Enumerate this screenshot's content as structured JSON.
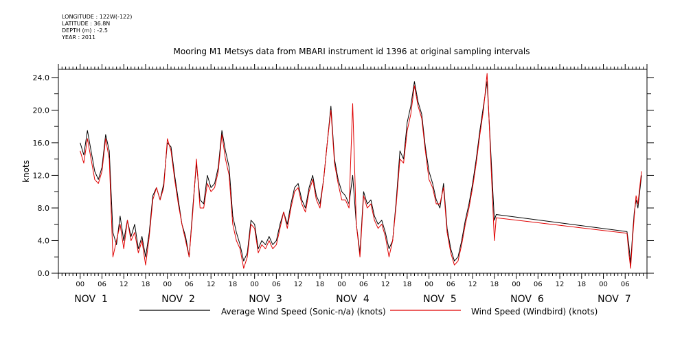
{
  "meta": {
    "longitude": "LONGITUDE : 122W(-122)",
    "latitude": "LATITUDE : 36.8N",
    "depth": "DEPTH (m) : -2.5",
    "year": "YEAR : 2011"
  },
  "chart_data": {
    "type": "line",
    "title": "Mooring M1 Metsys data from MBARI instrument id 1396 at original sampling intervals",
    "ylabel": "knots",
    "xlabel": "",
    "ylim": [
      0,
      25
    ],
    "xlim_hours": [
      -6,
      156
    ],
    "yticks": [
      "0.0",
      "4.0",
      "8.0",
      "12.0",
      "16.0",
      "20.0",
      "24.0"
    ],
    "hour_tick_labels": [
      "00",
      "06",
      "12",
      "18"
    ],
    "day_labels": [
      "NOV  1",
      "NOV  2",
      "NOV  3",
      "NOV  4",
      "NOV  5",
      "NOV  6",
      "NOV  7"
    ],
    "grid": false,
    "legend_position": "bottom",
    "colors": {
      "series1": "#000000",
      "series2": "#e00000"
    },
    "series": [
      {
        "name": "Average Wind Speed (Sonic-n/a) (knots)",
        "color": "#000000",
        "points": [
          [
            0,
            16.0
          ],
          [
            1,
            14.5
          ],
          [
            2,
            17.5
          ],
          [
            3,
            15.0
          ],
          [
            4,
            12.5
          ],
          [
            5,
            11.5
          ],
          [
            6,
            13.0
          ],
          [
            7,
            17.0
          ],
          [
            8,
            15.0
          ],
          [
            9,
            5.0
          ],
          [
            10,
            3.5
          ],
          [
            11,
            7.0
          ],
          [
            12,
            4.0
          ],
          [
            13,
            6.5
          ],
          [
            14,
            4.5
          ],
          [
            15,
            6.0
          ],
          [
            16,
            3.0
          ],
          [
            17,
            4.5
          ],
          [
            18,
            2.0
          ],
          [
            19,
            5.0
          ],
          [
            20,
            9.5
          ],
          [
            21,
            10.5
          ],
          [
            22,
            9.0
          ],
          [
            23,
            11.0
          ],
          [
            24,
            16.0
          ],
          [
            25,
            15.5
          ],
          [
            26,
            12.0
          ],
          [
            27,
            9.0
          ],
          [
            28,
            6.0
          ],
          [
            29,
            4.5
          ],
          [
            30,
            2.0
          ],
          [
            31,
            8.0
          ],
          [
            32,
            13.5
          ],
          [
            33,
            9.0
          ],
          [
            34,
            8.5
          ],
          [
            35,
            12.0
          ],
          [
            36,
            10.5
          ],
          [
            37,
            11.0
          ],
          [
            38,
            13.0
          ],
          [
            39,
            17.5
          ],
          [
            40,
            15.0
          ],
          [
            41,
            13.0
          ],
          [
            42,
            7.0
          ],
          [
            43,
            5.0
          ],
          [
            44,
            3.5
          ],
          [
            45,
            1.5
          ],
          [
            46,
            2.5
          ],
          [
            47,
            6.5
          ],
          [
            48,
            6.0
          ],
          [
            49,
            3.0
          ],
          [
            50,
            4.0
          ],
          [
            51,
            3.5
          ],
          [
            52,
            4.5
          ],
          [
            53,
            3.5
          ],
          [
            54,
            4.0
          ],
          [
            55,
            6.0
          ],
          [
            56,
            7.5
          ],
          [
            57,
            6.0
          ],
          [
            58,
            8.5
          ],
          [
            59,
            10.5
          ],
          [
            60,
            11.0
          ],
          [
            61,
            9.0
          ],
          [
            62,
            8.0
          ],
          [
            63,
            10.5
          ],
          [
            64,
            12.0
          ],
          [
            65,
            9.5
          ],
          [
            66,
            8.5
          ],
          [
            67,
            11.5
          ],
          [
            68,
            16.0
          ],
          [
            69,
            20.5
          ],
          [
            70,
            14.0
          ],
          [
            71,
            11.5
          ],
          [
            72,
            10.0
          ],
          [
            73,
            9.5
          ],
          [
            74,
            8.5
          ],
          [
            75,
            12.0
          ],
          [
            76,
            6.0
          ],
          [
            77,
            2.5
          ],
          [
            78,
            10.0
          ],
          [
            79,
            8.5
          ],
          [
            80,
            9.0
          ],
          [
            81,
            7.0
          ],
          [
            82,
            6.0
          ],
          [
            83,
            6.5
          ],
          [
            84,
            5.0
          ],
          [
            85,
            3.0
          ],
          [
            86,
            4.0
          ],
          [
            87,
            9.0
          ],
          [
            88,
            15.0
          ],
          [
            89,
            14.0
          ],
          [
            90,
            18.5
          ],
          [
            91,
            20.5
          ],
          [
            92,
            23.5
          ],
          [
            93,
            21.0
          ],
          [
            94,
            19.5
          ],
          [
            95,
            15.5
          ],
          [
            96,
            12.5
          ],
          [
            97,
            11.0
          ],
          [
            98,
            9.0
          ],
          [
            99,
            8.0
          ],
          [
            100,
            11.0
          ],
          [
            101,
            5.5
          ],
          [
            102,
            3.0
          ],
          [
            103,
            1.5
          ],
          [
            104,
            2.0
          ],
          [
            105,
            4.0
          ],
          [
            106,
            6.5
          ],
          [
            107,
            8.5
          ],
          [
            108,
            11.0
          ],
          [
            109,
            14.0
          ],
          [
            110,
            17.5
          ],
          [
            111,
            20.5
          ],
          [
            112,
            23.5
          ],
          [
            113,
            15.0
          ],
          [
            114,
            6.5
          ],
          [
            114.5,
            7.2
          ],
          [
            150.5,
            5.1
          ],
          [
            151,
            3.5
          ],
          [
            151.5,
            1.2
          ],
          [
            152,
            4.5
          ],
          [
            152.5,
            7.5
          ],
          [
            153,
            9.0
          ],
          [
            153.5,
            8.0
          ],
          [
            154,
            10.0
          ],
          [
            154.5,
            12.0
          ]
        ]
      },
      {
        "name": "Wind Speed (Windbird) (knots)",
        "color": "#e00000",
        "points": [
          [
            0,
            15.0
          ],
          [
            1,
            13.5
          ],
          [
            2,
            16.5
          ],
          [
            3,
            14.0
          ],
          [
            4,
            11.5
          ],
          [
            5,
            11.0
          ],
          [
            6,
            12.5
          ],
          [
            7,
            16.5
          ],
          [
            8,
            14.0
          ],
          [
            9,
            2.0
          ],
          [
            10,
            4.0
          ],
          [
            11,
            6.0
          ],
          [
            12,
            3.0
          ],
          [
            13,
            6.5
          ],
          [
            14,
            4.0
          ],
          [
            15,
            5.0
          ],
          [
            16,
            2.5
          ],
          [
            17,
            4.0
          ],
          [
            18,
            1.0
          ],
          [
            19,
            4.5
          ],
          [
            20,
            9.0
          ],
          [
            21,
            10.5
          ],
          [
            22,
            9.0
          ],
          [
            23,
            10.5
          ],
          [
            24,
            16.5
          ],
          [
            25,
            15.0
          ],
          [
            26,
            11.5
          ],
          [
            27,
            8.5
          ],
          [
            28,
            6.0
          ],
          [
            29,
            4.0
          ],
          [
            30,
            2.0
          ],
          [
            31,
            7.5
          ],
          [
            32,
            14.0
          ],
          [
            33,
            8.0
          ],
          [
            34,
            8.0
          ],
          [
            35,
            11.0
          ],
          [
            36,
            10.0
          ],
          [
            37,
            10.5
          ],
          [
            38,
            12.5
          ],
          [
            39,
            17.0
          ],
          [
            40,
            14.0
          ],
          [
            41,
            12.0
          ],
          [
            42,
            6.0
          ],
          [
            43,
            4.0
          ],
          [
            44,
            3.0
          ],
          [
            45,
            0.6
          ],
          [
            46,
            2.0
          ],
          [
            47,
            6.0
          ],
          [
            48,
            5.5
          ],
          [
            49,
            2.5
          ],
          [
            50,
            3.5
          ],
          [
            51,
            3.0
          ],
          [
            52,
            4.0
          ],
          [
            53,
            3.0
          ],
          [
            54,
            3.5
          ],
          [
            55,
            5.5
          ],
          [
            56,
            7.5
          ],
          [
            57,
            5.5
          ],
          [
            58,
            8.0
          ],
          [
            59,
            10.0
          ],
          [
            60,
            10.5
          ],
          [
            61,
            8.5
          ],
          [
            62,
            7.5
          ],
          [
            63,
            10.0
          ],
          [
            64,
            11.5
          ],
          [
            65,
            9.0
          ],
          [
            66,
            8.0
          ],
          [
            67,
            11.5
          ],
          [
            68,
            16.0
          ],
          [
            69,
            20.0
          ],
          [
            70,
            13.5
          ],
          [
            71,
            11.0
          ],
          [
            72,
            9.0
          ],
          [
            73,
            9.0
          ],
          [
            74,
            8.0
          ],
          [
            75,
            20.8
          ],
          [
            76,
            6.0
          ],
          [
            77,
            2.0
          ],
          [
            78,
            9.5
          ],
          [
            79,
            8.0
          ],
          [
            80,
            8.5
          ],
          [
            81,
            6.5
          ],
          [
            82,
            5.5
          ],
          [
            83,
            6.0
          ],
          [
            84,
            4.5
          ],
          [
            85,
            2.0
          ],
          [
            86,
            4.0
          ],
          [
            87,
            8.5
          ],
          [
            88,
            14.0
          ],
          [
            89,
            13.5
          ],
          [
            90,
            17.5
          ],
          [
            91,
            19.5
          ],
          [
            92,
            23.0
          ],
          [
            93,
            20.5
          ],
          [
            94,
            19.0
          ],
          [
            95,
            15.0
          ],
          [
            96,
            11.5
          ],
          [
            97,
            10.5
          ],
          [
            98,
            8.5
          ],
          [
            99,
            8.5
          ],
          [
            100,
            10.5
          ],
          [
            101,
            5.0
          ],
          [
            102,
            2.5
          ],
          [
            103,
            1.0
          ],
          [
            104,
            1.5
          ],
          [
            105,
            3.5
          ],
          [
            106,
            6.0
          ],
          [
            107,
            8.0
          ],
          [
            108,
            10.5
          ],
          [
            109,
            13.5
          ],
          [
            110,
            17.0
          ],
          [
            111,
            20.0
          ],
          [
            112,
            24.5
          ],
          [
            113,
            14.0
          ],
          [
            114,
            4.0
          ],
          [
            114.5,
            6.8
          ],
          [
            150.5,
            4.9
          ],
          [
            151,
            2.5
          ],
          [
            151.5,
            0.6
          ],
          [
            152,
            4.0
          ],
          [
            152.5,
            7.0
          ],
          [
            153,
            9.5
          ],
          [
            153.5,
            8.5
          ],
          [
            154,
            10.5
          ],
          [
            154.5,
            12.5
          ]
        ]
      }
    ]
  }
}
